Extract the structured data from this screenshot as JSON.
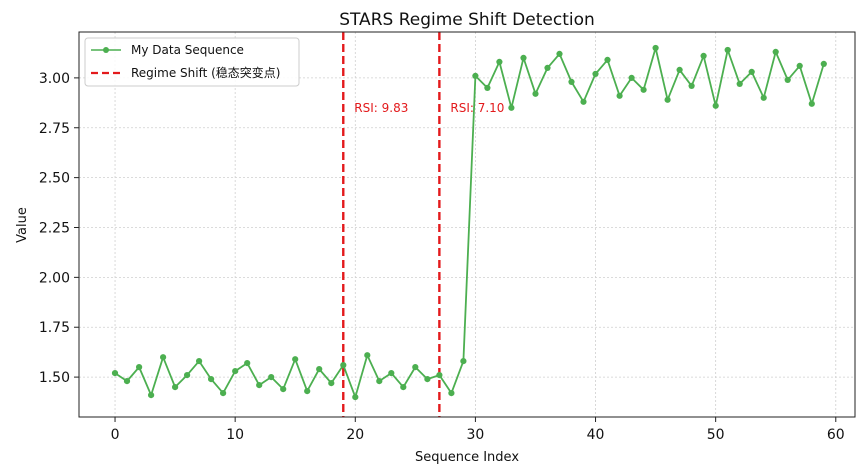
{
  "chart_data": {
    "type": "line",
    "title": "STARS Regime Shift Detection",
    "xlabel": "Sequence Index",
    "ylabel": "Value",
    "xlim": [
      -3,
      61.6
    ],
    "ylim": [
      1.3,
      3.23
    ],
    "xticks": [
      0,
      10,
      20,
      30,
      40,
      50,
      60
    ],
    "yticks": [
      1.5,
      1.75,
      2.0,
      2.25,
      2.5,
      2.75,
      3.0
    ],
    "ytick_labels": [
      "1.50",
      "1.75",
      "2.00",
      "2.25",
      "2.50",
      "2.75",
      "3.00"
    ],
    "grid": true,
    "legend_position": "top-left",
    "series": [
      {
        "name": "My Data Sequence",
        "color": "#4caf50",
        "x": [
          0,
          1,
          2,
          3,
          4,
          5,
          6,
          7,
          8,
          9,
          10,
          11,
          12,
          13,
          14,
          15,
          16,
          17,
          18,
          19,
          20,
          21,
          22,
          23,
          24,
          25,
          26,
          27,
          28,
          29,
          30,
          31,
          32,
          33,
          34,
          35,
          36,
          37,
          38,
          39,
          40,
          41,
          42,
          43,
          44,
          45,
          46,
          47,
          48,
          49,
          50,
          51,
          52,
          53,
          54,
          55,
          56,
          57,
          58,
          59
        ],
        "y": [
          1.52,
          1.48,
          1.55,
          1.41,
          1.6,
          1.45,
          1.51,
          1.58,
          1.49,
          1.42,
          1.53,
          1.57,
          1.46,
          1.5,
          1.44,
          1.59,
          1.43,
          1.54,
          1.47,
          1.56,
          1.4,
          1.61,
          1.48,
          1.52,
          1.45,
          1.55,
          1.49,
          1.51,
          1.42,
          1.58,
          3.01,
          2.95,
          3.08,
          2.85,
          3.1,
          2.92,
          3.05,
          3.12,
          2.98,
          2.88,
          3.02,
          3.09,
          2.91,
          3.0,
          2.94,
          3.15,
          2.89,
          3.04,
          2.96,
          3.11,
          2.86,
          3.14,
          2.97,
          3.03,
          2.9,
          3.13,
          2.99,
          3.06,
          2.87,
          3.07
        ]
      }
    ],
    "regime_shifts": {
      "name": "Regime Shift (稳态突变点)",
      "color": "#e31a1c",
      "x": [
        19,
        27
      ],
      "labels": [
        "RSI: 9.83",
        "RSI: 7.10"
      ],
      "label_y": 2.85
    }
  }
}
